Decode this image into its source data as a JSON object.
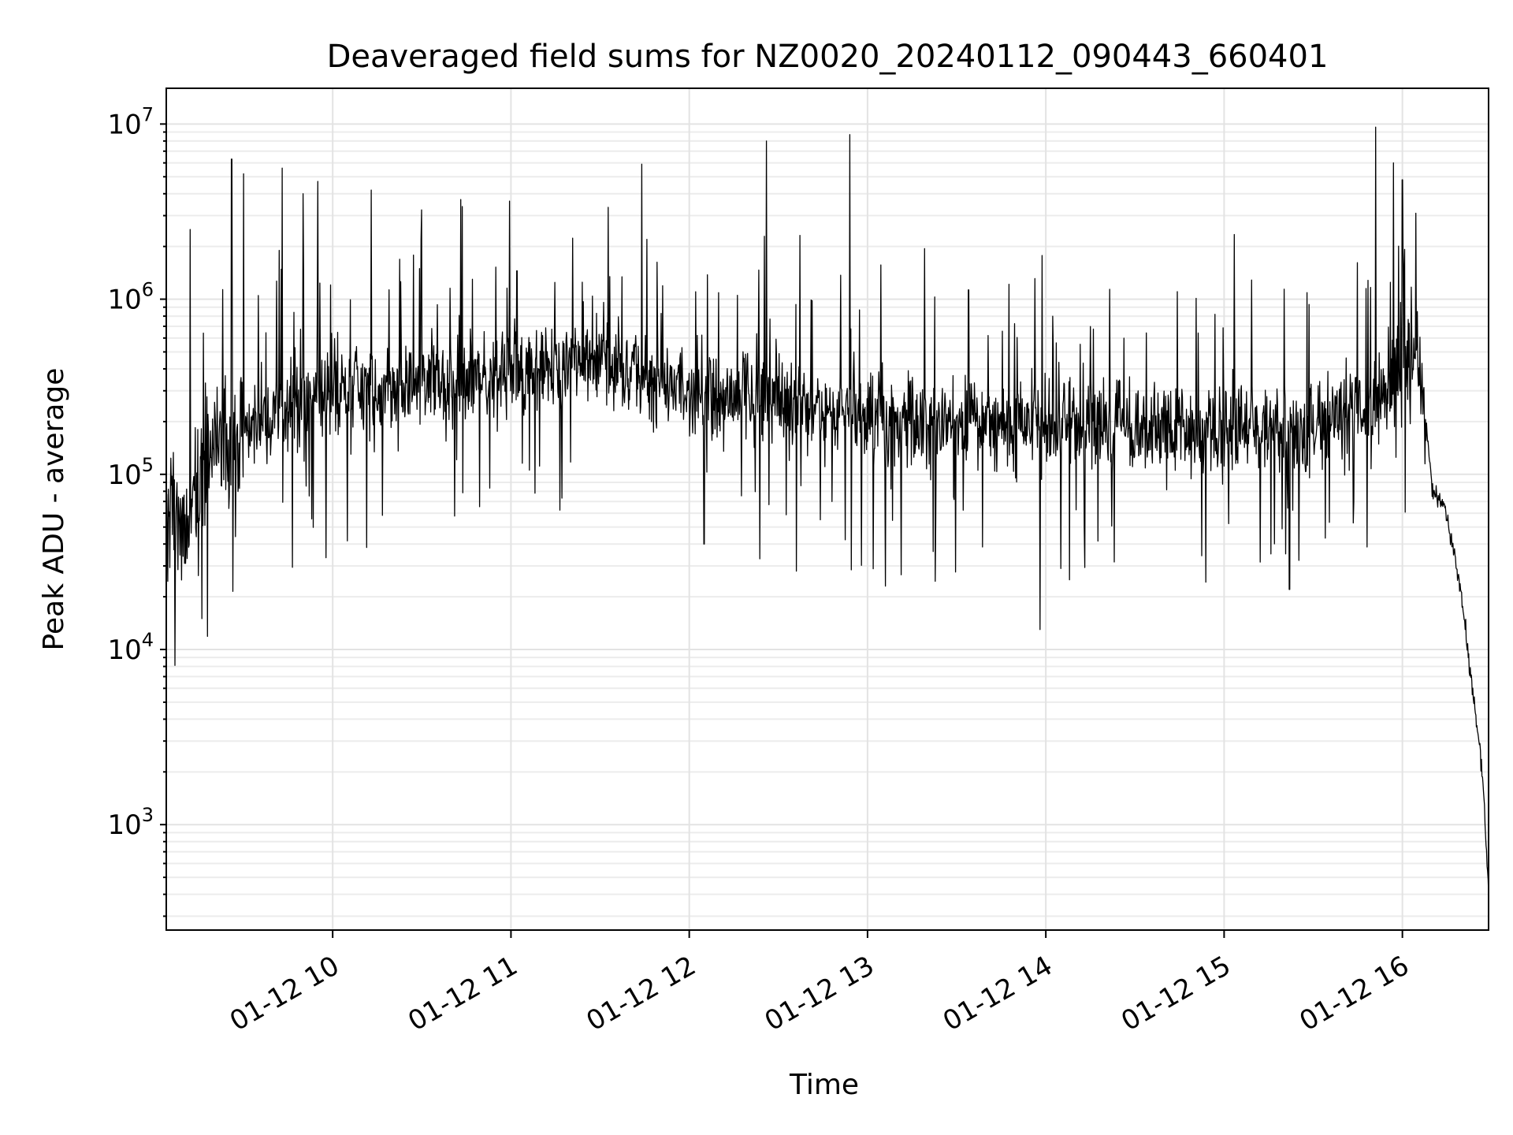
{
  "chart_data": {
    "type": "line",
    "title": "Deaveraged field sums for NZ0020_20240112_090443_660401",
    "xlabel": "Time",
    "ylabel": "Peak ADU - average",
    "yscale": "log",
    "grid": "on (major and minor)",
    "xlim": [
      "01-12 09:04",
      "01-12 16:29"
    ],
    "ylim": [
      250,
      16000000
    ],
    "x_ticks": [
      {
        "time": "01-12 10:00",
        "label": "01-12 10"
      },
      {
        "time": "01-12 11:00",
        "label": "01-12 11"
      },
      {
        "time": "01-12 12:00",
        "label": "01-12 12"
      },
      {
        "time": "01-12 13:00",
        "label": "01-12 13"
      },
      {
        "time": "01-12 14:00",
        "label": "01-12 14"
      },
      {
        "time": "01-12 15:00",
        "label": "01-12 15"
      },
      {
        "time": "01-12 16:00",
        "label": "01-12 16"
      }
    ],
    "y_ticks": [
      {
        "value": 1000,
        "base": "10",
        "exp": "3"
      },
      {
        "value": 10000,
        "base": "10",
        "exp": "4"
      },
      {
        "value": 100000,
        "base": "10",
        "exp": "5"
      },
      {
        "value": 1000000,
        "base": "10",
        "exp": "6"
      },
      {
        "value": 10000000,
        "base": "10",
        "exp": "7"
      }
    ],
    "series_color": "#000000",
    "baseline": [
      {
        "t": "01-12 09:04",
        "v": 60000
      },
      {
        "t": "01-12 09:10",
        "v": 45000
      },
      {
        "t": "01-12 09:20",
        "v": 150000
      },
      {
        "t": "01-12 09:30",
        "v": 180000
      },
      {
        "t": "01-12 09:40",
        "v": 220000
      },
      {
        "t": "01-12 10:00",
        "v": 300000
      },
      {
        "t": "01-12 10:30",
        "v": 320000
      },
      {
        "t": "01-12 11:00",
        "v": 380000
      },
      {
        "t": "01-12 11:30",
        "v": 450000
      },
      {
        "t": "01-12 12:00",
        "v": 300000
      },
      {
        "t": "01-12 12:30",
        "v": 260000
      },
      {
        "t": "01-12 13:00",
        "v": 200000
      },
      {
        "t": "01-12 14:00",
        "v": 190000
      },
      {
        "t": "01-12 15:00",
        "v": 180000
      },
      {
        "t": "01-12 15:30",
        "v": 180000
      },
      {
        "t": "01-12 15:50",
        "v": 250000
      },
      {
        "t": "01-12 16:00",
        "v": 400000
      },
      {
        "t": "01-12 16:05",
        "v": 450000
      },
      {
        "t": "01-12 16:08",
        "v": 200000
      },
      {
        "t": "01-12 16:10",
        "v": 80000
      },
      {
        "t": "01-12 16:15",
        "v": 60000
      },
      {
        "t": "01-12 16:20",
        "v": 20000
      },
      {
        "t": "01-12 16:24",
        "v": 5000
      },
      {
        "t": "01-12 16:27",
        "v": 2000
      },
      {
        "t": "01-12 16:29",
        "v": 400
      }
    ],
    "spikes": [
      {
        "t": "01-12 09:12",
        "v": 2500000
      },
      {
        "t": "01-12 09:16",
        "v": 15000
      },
      {
        "t": "01-12 09:26",
        "v": 6300000
      },
      {
        "t": "01-12 09:30",
        "v": 5200000
      },
      {
        "t": "01-12 09:35",
        "v": 1050000
      },
      {
        "t": "01-12 09:42",
        "v": 1900000
      },
      {
        "t": "01-12 09:43",
        "v": 5600000
      },
      {
        "t": "01-12 09:50",
        "v": 4000000
      },
      {
        "t": "01-12 09:55",
        "v": 4700000
      },
      {
        "t": "01-12 10:13",
        "v": 4200000
      },
      {
        "t": "01-12 10:47",
        "v": 1300000
      },
      {
        "t": "01-12 11:02",
        "v": 1450000
      },
      {
        "t": "01-12 11:24",
        "v": 1250000
      },
      {
        "t": "01-12 11:44",
        "v": 5900000
      },
      {
        "t": "01-12 12:05",
        "v": 40000
      },
      {
        "t": "01-12 12:26",
        "v": 8000000
      },
      {
        "t": "01-12 12:36",
        "v": 28000
      },
      {
        "t": "01-12 12:54",
        "v": 8700000
      },
      {
        "t": "01-12 13:06",
        "v": 23000
      },
      {
        "t": "01-12 13:34",
        "v": 1130000
      },
      {
        "t": "01-12 13:58",
        "v": 13000
      },
      {
        "t": "01-12 14:08",
        "v": 25000
      },
      {
        "t": "01-12 15:22",
        "v": 22000
      },
      {
        "t": "01-12 15:51",
        "v": 9600000
      },
      {
        "t": "01-12 15:57",
        "v": 6000000
      },
      {
        "t": "01-12 16:00",
        "v": 4800000
      },
      {
        "t": "01-12 16:05",
        "v": 850000
      }
    ]
  }
}
